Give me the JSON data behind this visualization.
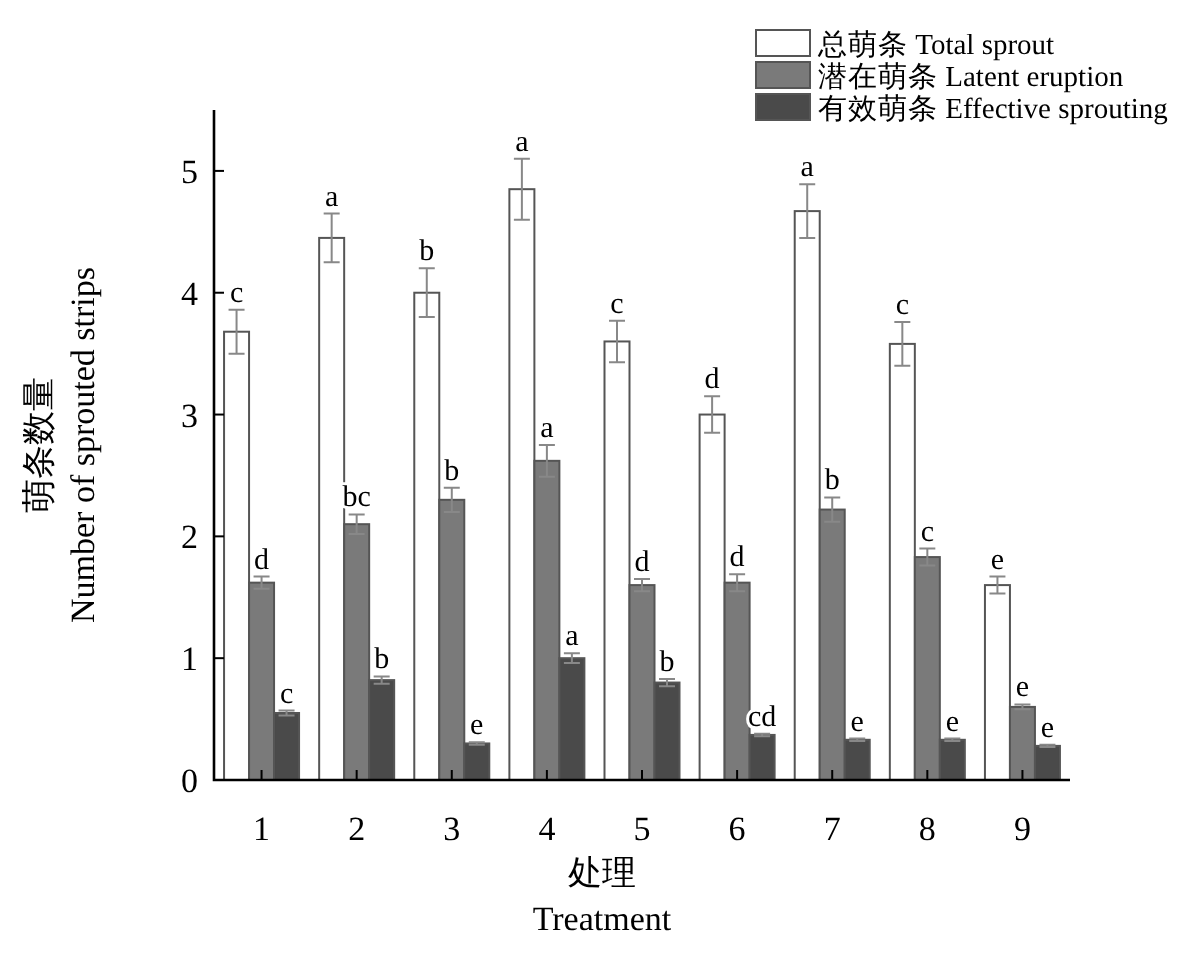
{
  "chart_data": {
    "type": "bar",
    "xlabel": "处理\nTreatment",
    "ylabel": "萌条数量\nNumber of sprouted strips",
    "categories": [
      "1",
      "2",
      "3",
      "4",
      "5",
      "6",
      "7",
      "8",
      "9"
    ],
    "ylim": [
      0,
      5.5
    ],
    "yticks": [
      0,
      1,
      2,
      3,
      4,
      5
    ],
    "legend": "top right",
    "series": [
      {
        "name": "总萌条 Total sprout",
        "color": "#ffffff",
        "values": [
          3.68,
          4.45,
          4.0,
          4.85,
          3.6,
          3.0,
          4.67,
          3.58,
          1.6
        ],
        "errors": [
          0.18,
          0.2,
          0.2,
          0.25,
          0.17,
          0.15,
          0.22,
          0.18,
          0.07
        ],
        "value_labels": [
          "c",
          "a",
          "b",
          "a",
          "c",
          "d",
          "a",
          "c",
          "e"
        ]
      },
      {
        "name": "潜在萌条 Latent eruption",
        "color": "#7a7a7a",
        "values": [
          1.62,
          2.1,
          2.3,
          2.62,
          1.6,
          1.62,
          2.22,
          1.83,
          0.6
        ],
        "errors": [
          0.05,
          0.08,
          0.1,
          0.13,
          0.05,
          0.07,
          0.1,
          0.07,
          0.02
        ],
        "value_labels": [
          "d",
          "bc",
          "b",
          "a",
          "d",
          "d",
          "b",
          "c",
          "e"
        ]
      },
      {
        "name": "有效萌条 Effective sprouting",
        "color": "#4a4a4a",
        "values": [
          0.55,
          0.82,
          0.3,
          1.0,
          0.8,
          0.37,
          0.33,
          0.33,
          0.28
        ],
        "errors": [
          0.02,
          0.03,
          0.01,
          0.04,
          0.03,
          0.01,
          0.01,
          0.01,
          0.01
        ],
        "value_labels": [
          "c",
          "b",
          "e",
          "a",
          "b",
          "cd",
          "e",
          "e",
          "e"
        ]
      }
    ]
  }
}
